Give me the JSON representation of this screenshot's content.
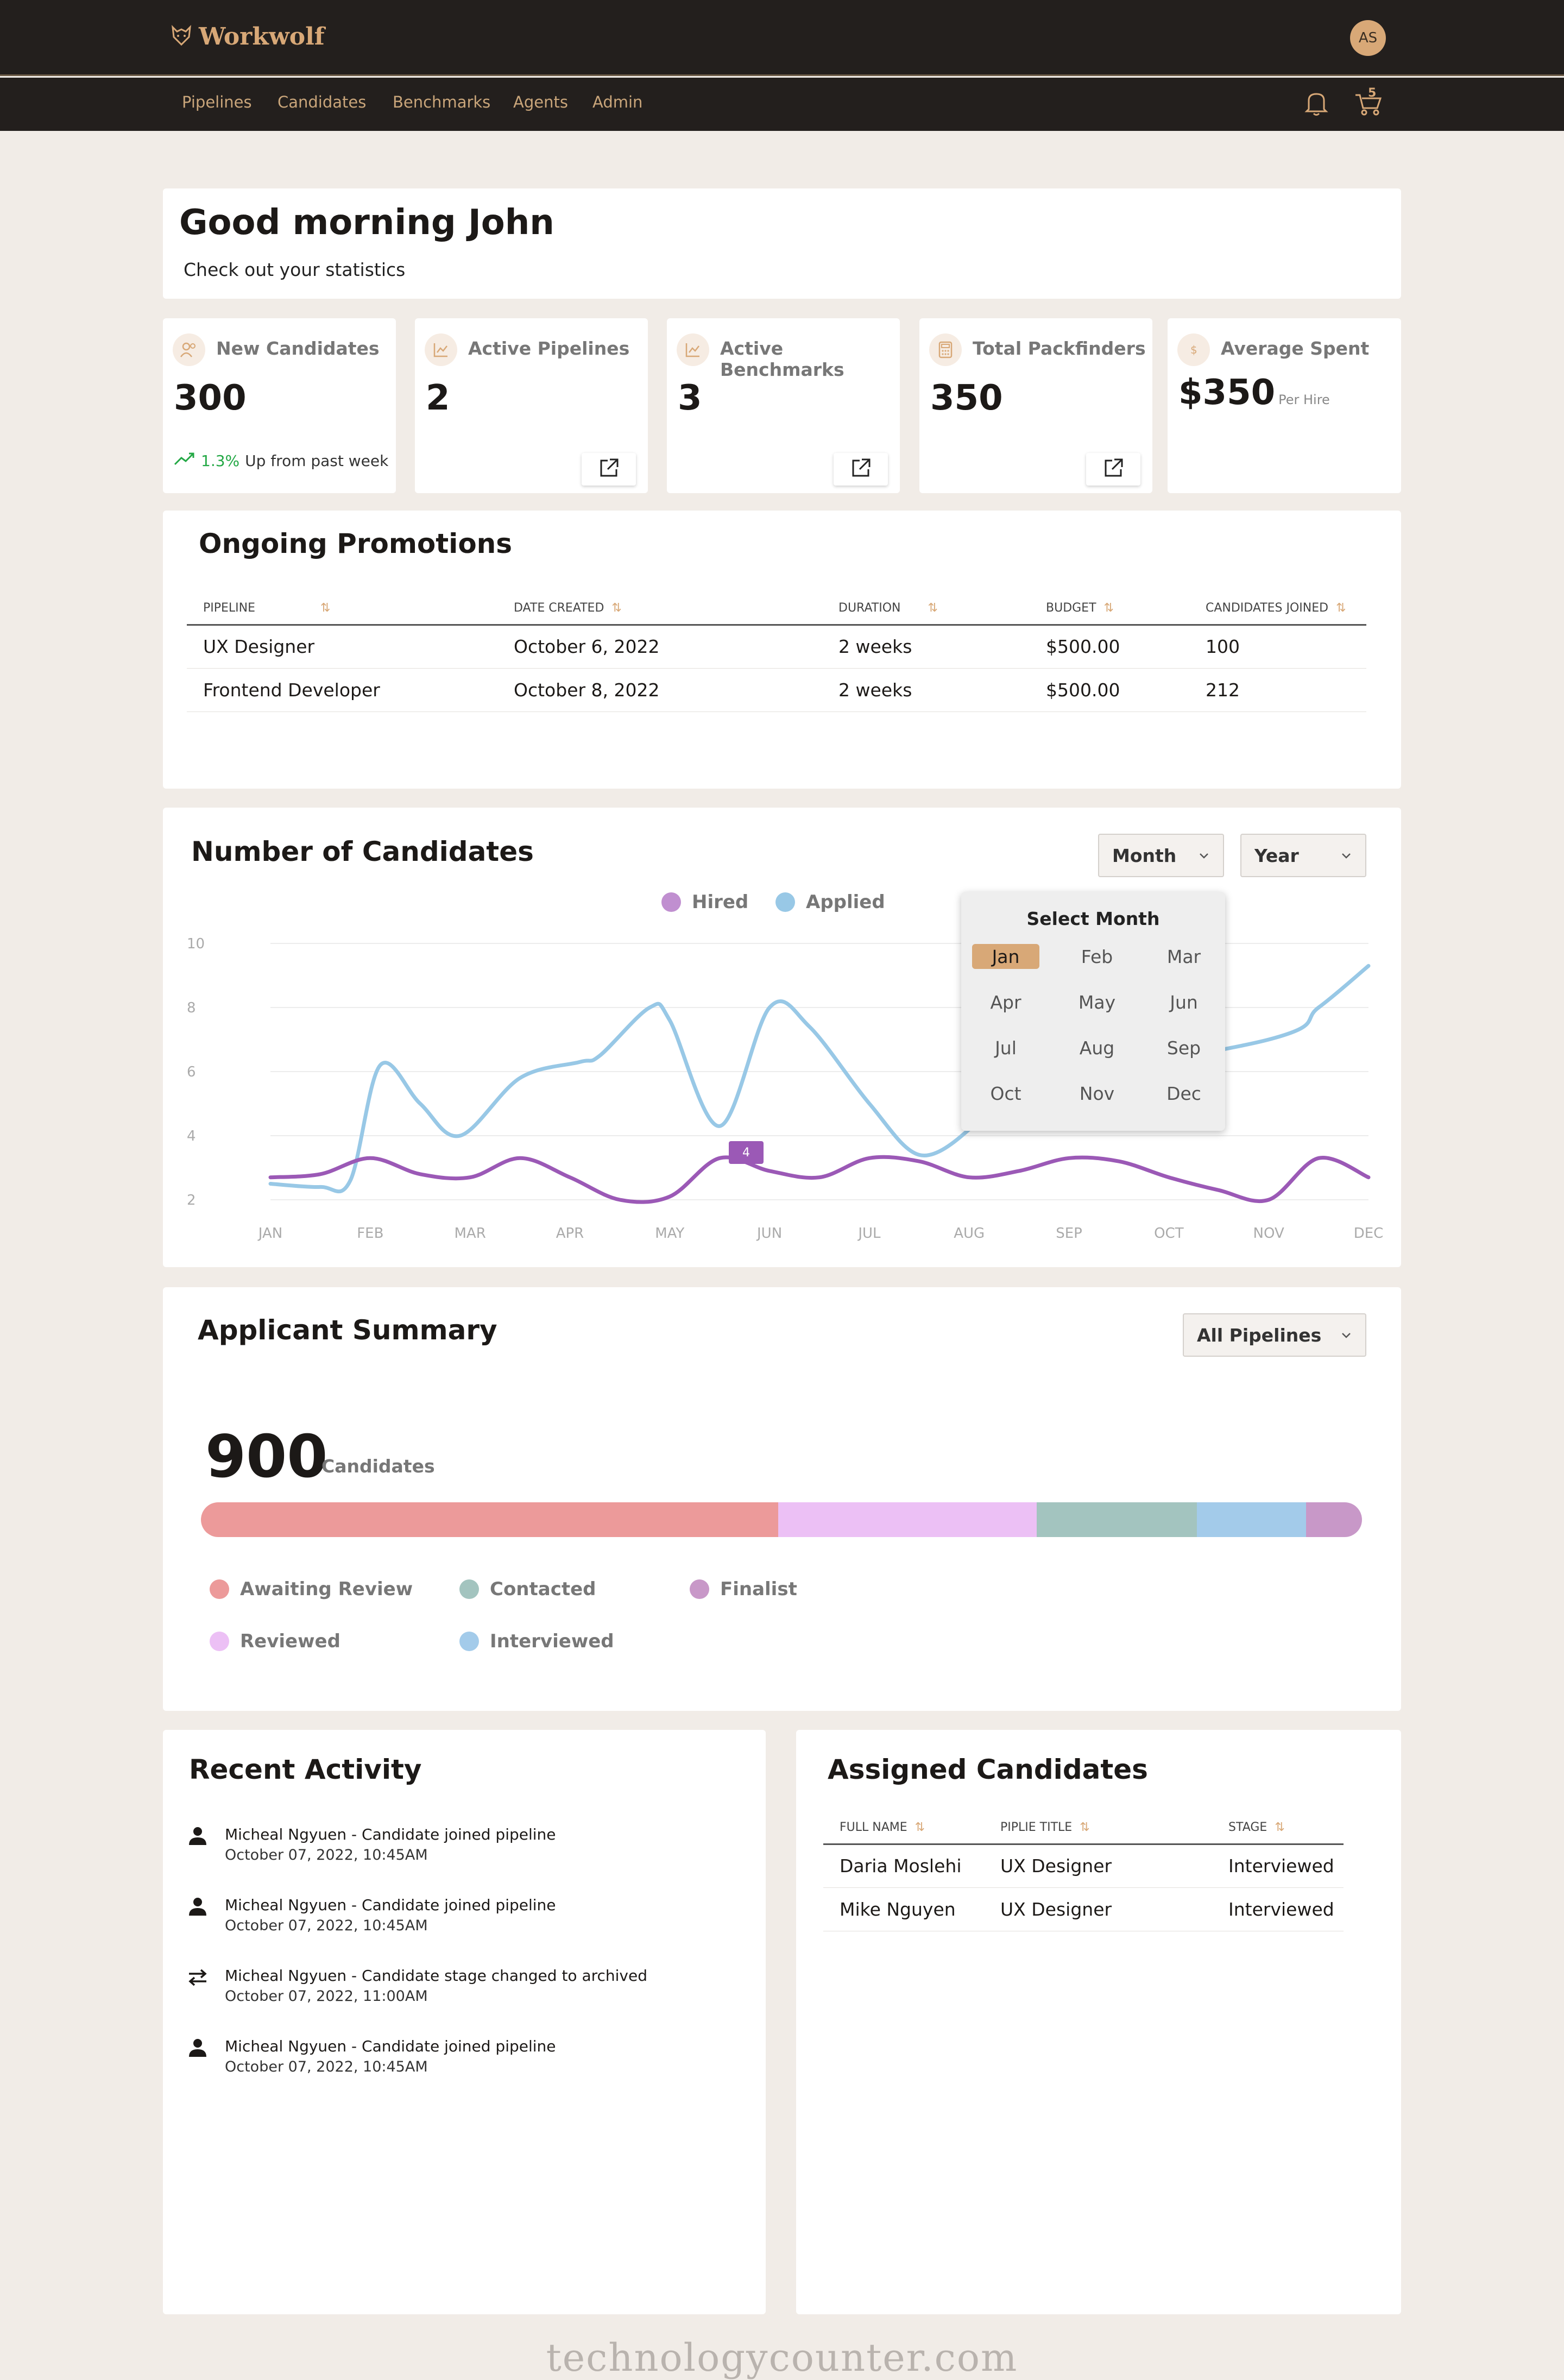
{
  "app": {
    "name": "Workwolf",
    "user_initials": "AS",
    "cart_count": "5"
  },
  "nav": {
    "items": [
      "Pipelines",
      "Candidates",
      "Benchmarks",
      "Agents",
      "Admin"
    ]
  },
  "greeting": {
    "title": "Good morning John",
    "subtitle": "Check out your statistics"
  },
  "stats": [
    {
      "label": "New Candidates",
      "value": "300",
      "icon": "people-icon",
      "trend_pct": "1.3%",
      "trend_text": "Up from past week"
    },
    {
      "label": "Active Pipelines",
      "value": "2",
      "icon": "chart-icon"
    },
    {
      "label": "Active Benchmarks",
      "value": "3",
      "icon": "chart-icon"
    },
    {
      "label": "Total Packfinders",
      "value": "350",
      "icon": "calculator-icon"
    },
    {
      "label": "Average Spent",
      "value": "$350",
      "icon": "dollar-icon",
      "suffix": "Per Hire"
    }
  ],
  "promotions": {
    "title": "Ongoing Promotions",
    "headers": [
      "PIPELINE",
      "DATE CREATED",
      "DURATION",
      "BUDGET",
      "CANDIDATES JOINED"
    ],
    "rows": [
      [
        "UX Designer",
        "October 6, 2022",
        "2 weeks",
        "$500.00",
        "100"
      ],
      [
        "Frontend Developer",
        "October 8, 2022",
        "2 weeks",
        "$500.00",
        "212"
      ]
    ]
  },
  "candidates_chart": {
    "title": "Number of Candidates",
    "filters": {
      "month": "Month",
      "year": "Year"
    },
    "month_picker": {
      "title": "Select Month",
      "months": [
        "Jan",
        "Feb",
        "Mar",
        "Apr",
        "May",
        "Jun",
        "Jul",
        "Aug",
        "Sep",
        "Oct",
        "Nov",
        "Dec"
      ],
      "selected": "Jan"
    },
    "tooltip": "4"
  },
  "chart_data": {
    "type": "line",
    "x": [
      "JAN",
      "FEB",
      "MAR",
      "APR",
      "MAY",
      "JUN",
      "JUL",
      "AUG",
      "SEP",
      "OCT",
      "NOV",
      "DEC"
    ],
    "yticks": [
      10,
      8,
      6,
      4,
      2
    ],
    "ylim": [
      2,
      10
    ],
    "grid": true,
    "legend": "top-center",
    "series": [
      {
        "name": "Hired",
        "color": "#9b59b6",
        "points": [
          [
            0,
            2.7
          ],
          [
            0.5,
            2.8
          ],
          [
            1,
            3.3
          ],
          [
            1.5,
            2.8
          ],
          [
            2,
            2.7
          ],
          [
            2.5,
            3.3
          ],
          [
            3,
            2.7
          ],
          [
            3.5,
            2.0
          ],
          [
            4,
            2.1
          ],
          [
            4.5,
            3.3
          ],
          [
            5,
            2.9
          ],
          [
            5.5,
            2.7
          ],
          [
            6,
            3.3
          ],
          [
            6.5,
            3.2
          ],
          [
            7,
            2.7
          ],
          [
            7.5,
            2.9
          ],
          [
            8,
            3.3
          ],
          [
            8.5,
            3.2
          ],
          [
            9,
            2.7
          ],
          [
            9.5,
            2.3
          ],
          [
            10,
            2.0
          ],
          [
            10.5,
            3.3
          ],
          [
            11,
            2.7
          ]
        ]
      },
      {
        "name": "Applied",
        "color": "#98c8e6",
        "points": [
          [
            0,
            2.5
          ],
          [
            0.5,
            2.4
          ],
          [
            0.8,
            2.6
          ],
          [
            1.1,
            6.2
          ],
          [
            1.5,
            5.0
          ],
          [
            1.9,
            4.0
          ],
          [
            2.5,
            5.8
          ],
          [
            3.1,
            6.3
          ],
          [
            3.3,
            6.5
          ],
          [
            3.8,
            8.0
          ],
          [
            4.0,
            7.6
          ],
          [
            4.5,
            4.3
          ],
          [
            5.0,
            8.0
          ],
          [
            5.4,
            7.4
          ],
          [
            6.0,
            5.0
          ],
          [
            6.5,
            3.4
          ],
          [
            7.0,
            4.2
          ],
          [
            7.2,
            5.3
          ],
          [
            10.0,
            7.0
          ],
          [
            10.5,
            8.0
          ],
          [
            11.0,
            9.3
          ]
        ]
      }
    ]
  },
  "applicant_summary": {
    "title": "Applicant Summary",
    "filter": "All Pipelines",
    "total": "900",
    "total_unit": "Candidates",
    "segments": [
      {
        "name": "Awaiting Review",
        "fraction": 0.497,
        "color": "#ec9a9a"
      },
      {
        "name": "Reviewed",
        "fraction": 0.223,
        "color": "#ecc0f5"
      },
      {
        "name": "Contacted",
        "fraction": 0.138,
        "color": "#a3c4bf"
      },
      {
        "name": "Interviewed",
        "fraction": 0.094,
        "color": "#a3cbea"
      },
      {
        "name": "Finalist",
        "fraction": 0.048,
        "color": "#c898c8"
      }
    ]
  },
  "recent_activity": {
    "title": "Recent Activity",
    "items": [
      {
        "icon": "person-icon",
        "text": "Micheal Ngyuen - Candidate joined pipeline",
        "time": "October 07, 2022, 10:45AM"
      },
      {
        "icon": "person-icon",
        "text": "Micheal Ngyuen - Candidate joined pipeline",
        "time": "October 07, 2022, 10:45AM"
      },
      {
        "icon": "swap-icon",
        "text": "Micheal Ngyuen - Candidate stage changed to archived",
        "time": "October 07, 2022, 11:00AM"
      },
      {
        "icon": "person-icon",
        "text": "Micheal Ngyuen - Candidate joined pipeline",
        "time": "October 07, 2022, 10:45AM"
      }
    ]
  },
  "assigned_candidates": {
    "title": "Assigned Candidates",
    "headers": [
      "FULL NAME",
      "PIPLIE TITLE",
      "STAGE"
    ],
    "rows": [
      [
        "Daria Moslehi",
        "UX Designer",
        "Interviewed"
      ],
      [
        "Mike Nguyen",
        "UX Designer",
        "Interviewed"
      ]
    ]
  },
  "watermark": "technologycounter.com"
}
